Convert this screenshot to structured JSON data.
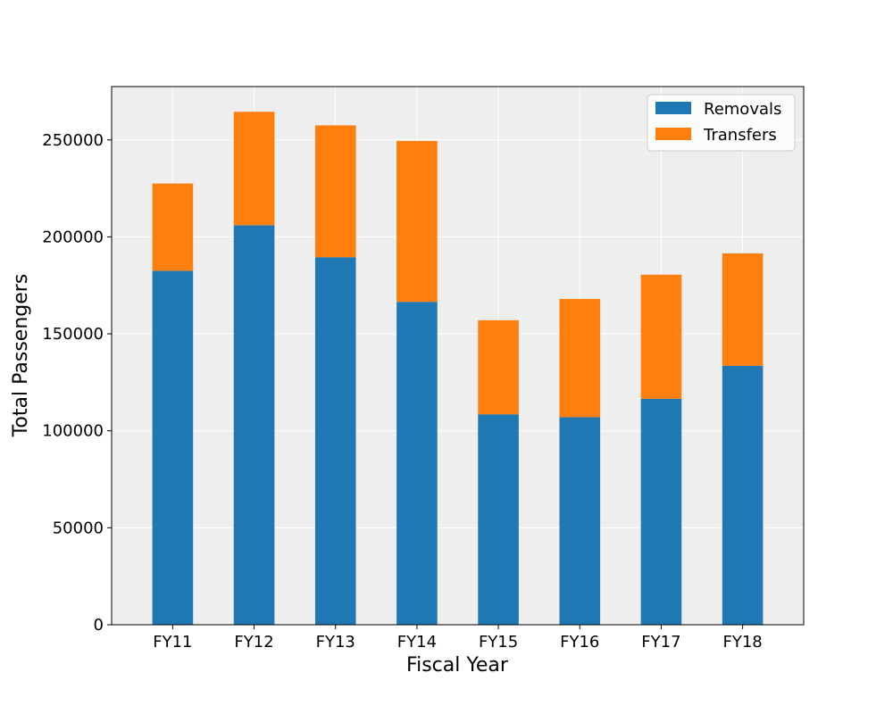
{
  "chart_data": {
    "type": "bar",
    "stacked": true,
    "title": "",
    "xlabel": "Fiscal Year",
    "ylabel": "Total Passengers",
    "categories": [
      "FY11",
      "FY12",
      "FY13",
      "FY14",
      "FY15",
      "FY16",
      "FY17",
      "FY18"
    ],
    "series": [
      {
        "name": "Removals",
        "color": "#1f77b4",
        "values": [
          182500,
          206000,
          189500,
          166500,
          108500,
          107000,
          116500,
          133500
        ]
      },
      {
        "name": "Transfers",
        "color": "#ff7f0e",
        "values": [
          45000,
          58500,
          68000,
          83000,
          48500,
          61000,
          64000,
          58000
        ]
      }
    ],
    "ylim": [
      0,
      277500
    ],
    "yticks": [
      0,
      50000,
      100000,
      150000,
      200000,
      250000
    ],
    "ytick_labels": [
      "0",
      "50000",
      "100000",
      "150000",
      "200000",
      "250000"
    ],
    "grid": true,
    "legend_position": "top-right",
    "plot_background": "#eeeeee",
    "grid_color": "#ffffff"
  }
}
